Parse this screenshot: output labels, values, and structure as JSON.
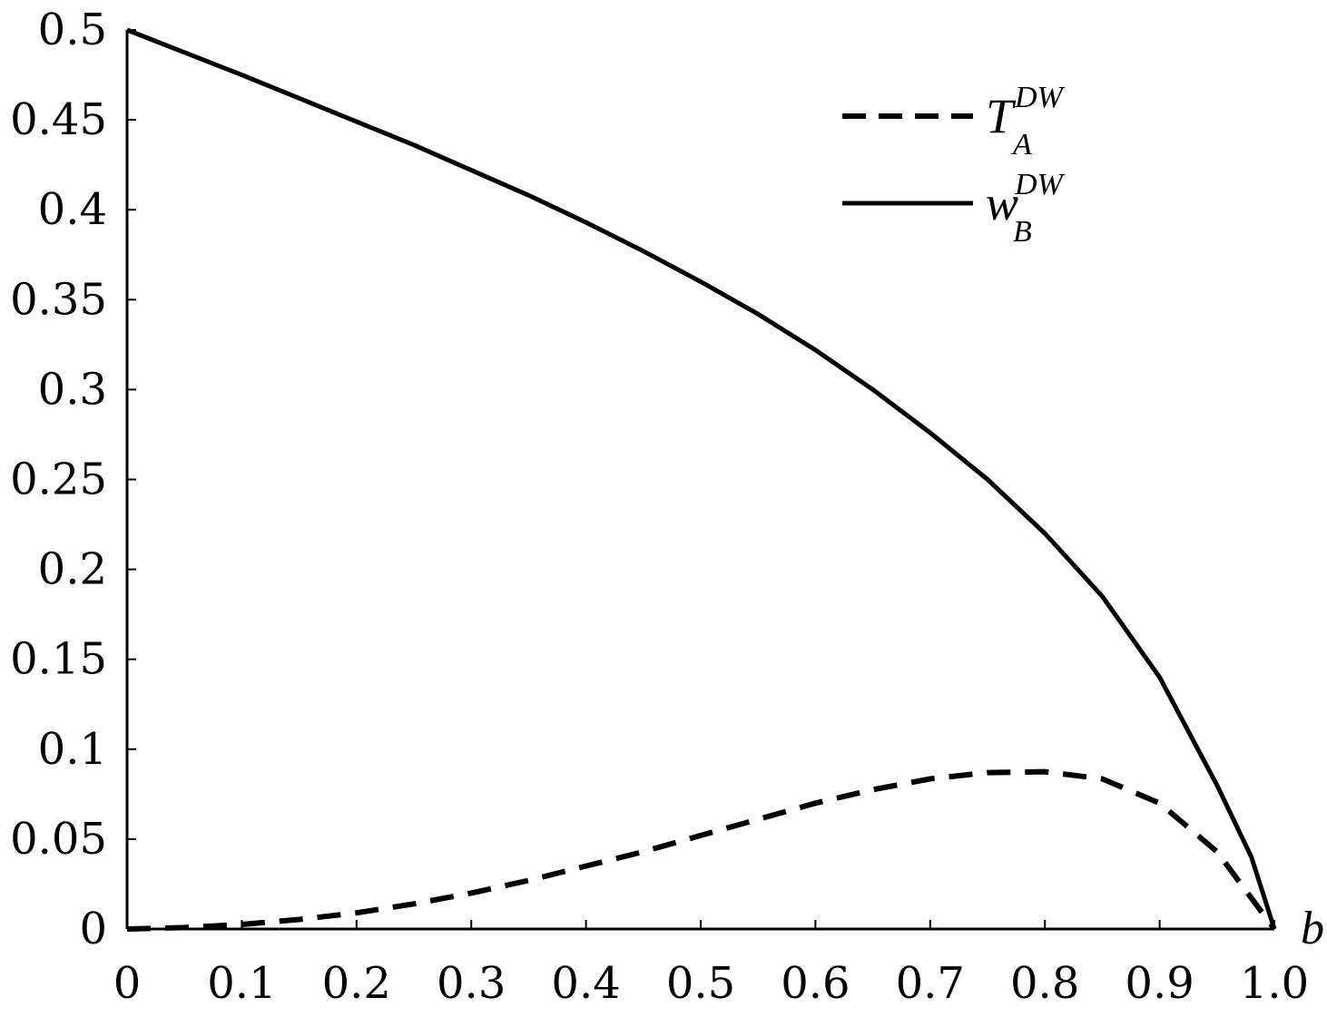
{
  "chart_data": {
    "type": "line",
    "title": "",
    "xlabel": "b",
    "ylabel": "",
    "xlim": [
      0,
      1.0
    ],
    "ylim": [
      0,
      0.5
    ],
    "x_ticks": [
      0,
      0.1,
      0.2,
      0.3,
      0.4,
      0.5,
      0.6,
      0.7,
      0.8,
      0.9,
      1.0
    ],
    "x_tick_labels": [
      "0",
      "0.1",
      "0.2",
      "0.3",
      "0.4",
      "0.5",
      "0.6",
      "0.7",
      "0.8",
      "0.9",
      "1.0"
    ],
    "y_ticks": [
      0,
      0.05,
      0.1,
      0.15,
      0.2,
      0.25,
      0.3,
      0.35,
      0.4,
      0.45,
      0.5
    ],
    "y_tick_labels": [
      "0",
      "0.05",
      "0.1",
      "0.15",
      "0.2",
      "0.25",
      "0.3",
      "0.35",
      "0.4",
      "0.45",
      "0.5"
    ],
    "grid": false,
    "legend_position": "top-right",
    "series": [
      {
        "name": "T_A^DW",
        "label_main": "T",
        "label_sup": "DW",
        "label_sub": "A",
        "style": "dashed",
        "color": "#000000",
        "x": [
          0,
          0.05,
          0.1,
          0.15,
          0.2,
          0.25,
          0.3,
          0.35,
          0.4,
          0.45,
          0.5,
          0.55,
          0.6,
          0.65,
          0.7,
          0.75,
          0.8,
          0.85,
          0.9,
          0.95,
          1.0
        ],
        "y": [
          0,
          0.0008,
          0.0025,
          0.0053,
          0.009,
          0.014,
          0.02,
          0.027,
          0.035,
          0.043,
          0.052,
          0.061,
          0.07,
          0.0775,
          0.0835,
          0.087,
          0.0875,
          0.0835,
          0.07,
          0.043,
          0
        ]
      },
      {
        "name": "w_B^DW",
        "label_main": "w",
        "label_sup": "DW",
        "label_sub": "B",
        "style": "solid",
        "color": "#000000",
        "x": [
          0,
          0.05,
          0.1,
          0.15,
          0.2,
          0.25,
          0.3,
          0.35,
          0.4,
          0.45,
          0.5,
          0.55,
          0.6,
          0.65,
          0.7,
          0.75,
          0.8,
          0.85,
          0.9,
          0.95,
          0.98,
          1.0
        ],
        "y": [
          0.5,
          0.4875,
          0.475,
          0.462,
          0.449,
          0.436,
          0.422,
          0.408,
          0.393,
          0.377,
          0.36,
          0.342,
          0.322,
          0.3,
          0.276,
          0.25,
          0.22,
          0.185,
          0.14,
          0.08,
          0.04,
          0
        ]
      }
    ]
  }
}
